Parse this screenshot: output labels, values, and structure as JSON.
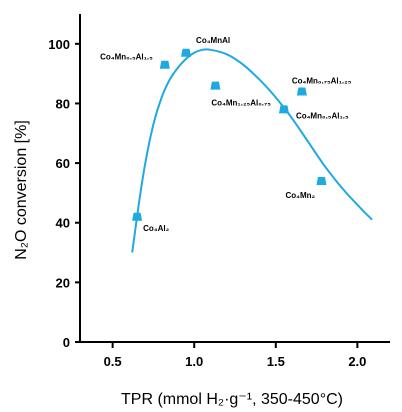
{
  "chart_data": {
    "type": "scatter",
    "xlabel": "TPR (mmol H₂·g⁻¹, 350-450°C)",
    "ylabel": "N₂O conversion [%]",
    "xlim": [
      0.3,
      2.2
    ],
    "ylim": [
      0,
      110
    ],
    "x_ticks": [
      "0.5",
      "1.0",
      "1.5",
      "2.0"
    ],
    "x_tick_values": [
      0.5,
      1.0,
      1.5,
      2.0
    ],
    "y_ticks": [
      "0",
      "20",
      "40",
      "60",
      "80",
      "100"
    ],
    "y_tick_values": [
      0,
      20,
      40,
      60,
      80,
      100
    ],
    "grid": false,
    "marker_color": "#1fa9e1",
    "curve_color": "#1fa9e1",
    "points": [
      {
        "label": "Co₄Al₂",
        "x": 0.65,
        "y": 42
      },
      {
        "label": "Co₄Mn₀.₅Al₁.₅",
        "x": 0.82,
        "y": 93
      },
      {
        "label": "Co₄MnAl",
        "x": 0.95,
        "y": 97
      },
      {
        "label": "Co₄Mn₁.₂₅Al₀.₇₅",
        "x": 1.13,
        "y": 86
      },
      {
        "label": "Co₄Mn₀.₇₅Al₁.₂₅",
        "x": 1.66,
        "y": 84
      },
      {
        "label": "Co₄Mn₀.₅Al₁.₅",
        "x": 1.55,
        "y": 78
      },
      {
        "label": "Co₄Mn₂",
        "x": 1.78,
        "y": 54
      }
    ],
    "fit_curve": {
      "x": [
        0.62,
        0.66,
        0.7,
        0.75,
        0.8,
        0.85,
        0.9,
        0.95,
        1.0,
        1.05,
        1.1,
        1.2,
        1.3,
        1.4,
        1.5,
        1.6,
        1.7,
        1.8,
        1.9,
        2.0,
        2.09
      ],
      "y": [
        30,
        46,
        60,
        73,
        82,
        88,
        92,
        95,
        97,
        98,
        98,
        96.5,
        93,
        88,
        82,
        75,
        67,
        59,
        52,
        46,
        41
      ]
    }
  }
}
